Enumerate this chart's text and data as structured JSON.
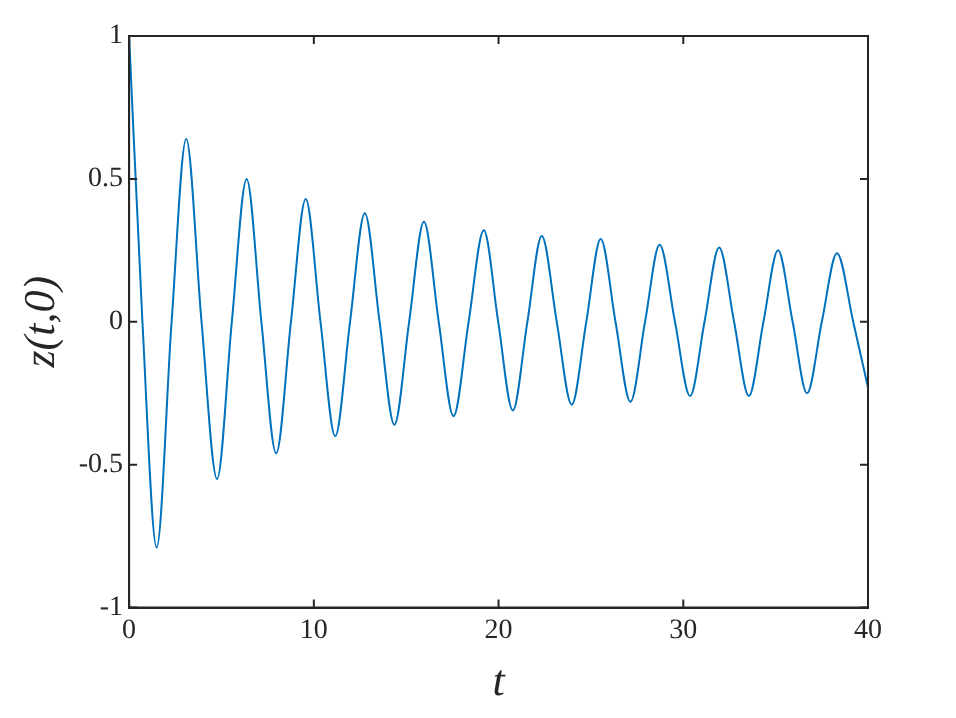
{
  "chart_data": {
    "type": "line",
    "xlabel": "t",
    "ylabel": "z(t,0)",
    "x": [
      0,
      0.72,
      1.49,
      2.3,
      3.09,
      3.92,
      4.76,
      5.56,
      6.36,
      7.16,
      7.96,
      8.76,
      9.56,
      10.36,
      11.16,
      11.96,
      12.76,
      13.56,
      14.36,
      15.16,
      15.96,
      16.76,
      17.56,
      18.38,
      19.2,
      19.98,
      20.77,
      21.56,
      22.34,
      23.15,
      23.96,
      24.75,
      25.53,
      26.33,
      27.14,
      27.93,
      28.72,
      29.55,
      30.37,
      31.15,
      31.94,
      32.75,
      33.55,
      34.34,
      35.13,
      35.92,
      36.7,
      37.5,
      38.32,
      39.2,
      40
    ],
    "series": [
      {
        "color": "#0072bd",
        "values": [
          1,
          0,
          -0.79,
          0,
          0.64,
          0,
          -0.55,
          0,
          0.5,
          0,
          -0.46,
          0,
          0.43,
          0,
          -0.4,
          0,
          0.38,
          0,
          -0.36,
          0,
          0.35,
          0,
          -0.33,
          0,
          0.32,
          0,
          -0.31,
          0,
          0.3,
          0,
          -0.29,
          0,
          0.29,
          0,
          -0.28,
          0,
          0.27,
          0,
          -0.26,
          0,
          0.26,
          0,
          -0.26,
          0,
          0.25,
          0,
          -0.25,
          0,
          0.24,
          0,
          -0.23
        ]
      }
    ],
    "xlim": [
      0,
      40
    ],
    "xticks": [
      0,
      10,
      20,
      30,
      40
    ],
    "ylim": [
      -1,
      1
    ],
    "yticks": [
      -1,
      -0.5,
      0,
      0.5,
      1
    ],
    "grid": false,
    "legend": false,
    "marker": "none",
    "line_style": "solid"
  }
}
